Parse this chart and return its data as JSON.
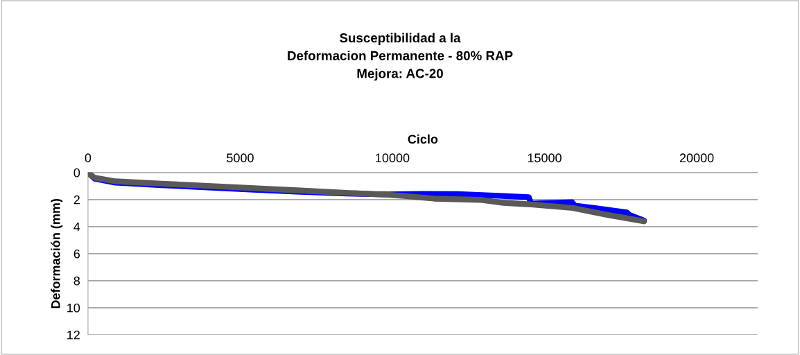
{
  "chart_data": {
    "type": "line",
    "title": "Susceptibilidad a la\nDeformacion Permanente - 80% RAP\nMejora: AC-20",
    "xlabel": "Ciclo",
    "ylabel": "Deformación (mm)",
    "xlim": [
      0,
      22000
    ],
    "xticks": [
      0,
      5000,
      10000,
      15000,
      20000
    ],
    "ylim": [
      12,
      0
    ],
    "yticks": [
      0,
      2,
      4,
      6,
      8,
      10,
      12
    ],
    "grid": "y",
    "marker": "none",
    "line_style": "solid",
    "series": [
      {
        "color": "#0000ff",
        "x": [
          0,
          220,
          900,
          2410,
          3940,
          5450,
          6970,
          8490,
          9850,
          11000,
          12130,
          13500,
          14480,
          14560,
          15900,
          16000,
          16700,
          17700,
          17800,
          18270
        ],
        "values": [
          0,
          0.45,
          0.75,
          0.93,
          1.1,
          1.27,
          1.42,
          1.55,
          1.62,
          1.58,
          1.6,
          1.72,
          1.82,
          2.3,
          2.2,
          2.45,
          2.65,
          2.95,
          3.15,
          3.56
        ]
      },
      {
        "color": "#595959",
        "x": [
          0,
          220,
          900,
          2410,
          3940,
          5450,
          6970,
          8490,
          9850,
          10380,
          11370,
          12880,
          13650,
          14560,
          15920,
          17060,
          18270
        ],
        "values": [
          0.05,
          0.39,
          0.65,
          0.82,
          0.99,
          1.16,
          1.33,
          1.5,
          1.64,
          1.73,
          1.93,
          2.02,
          2.24,
          2.36,
          2.62,
          3.13,
          3.61
        ]
      }
    ]
  }
}
